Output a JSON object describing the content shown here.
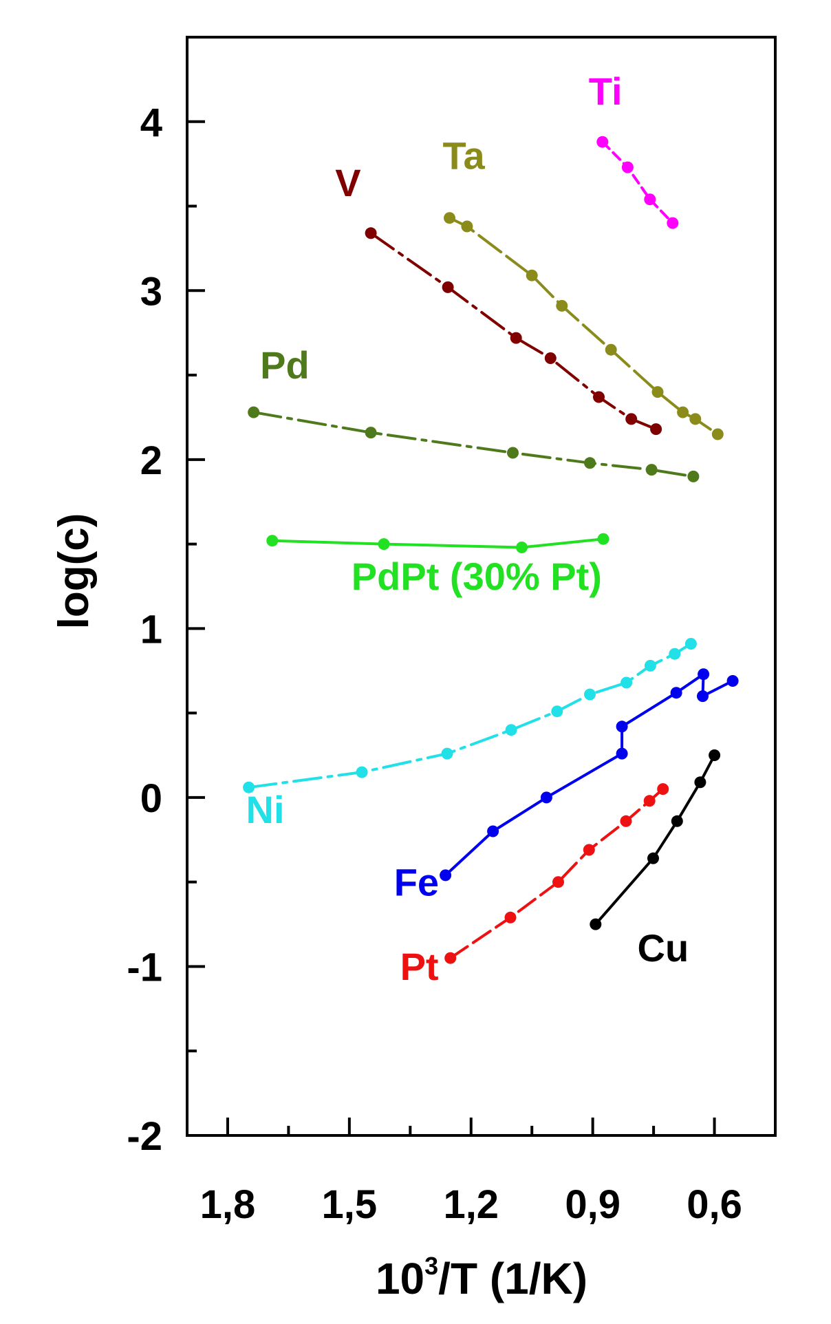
{
  "chart_data": {
    "type": "line",
    "title": "",
    "xlabel_base": "10",
    "xlabel_sup": "3",
    "xlabel_rest": "/T (1/K)",
    "ylabel": "log(c)",
    "xlim": [
      1.9,
      0.45
    ],
    "ylim": [
      -2,
      4.5
    ],
    "x_inverted": true,
    "grid": false,
    "x_ticks": [
      {
        "value": 1.8,
        "label": "1,8"
      },
      {
        "value": 1.5,
        "label": "1,5"
      },
      {
        "value": 1.2,
        "label": "1,2"
      },
      {
        "value": 0.9,
        "label": "0,9"
      },
      {
        "value": 0.6,
        "label": "0,6"
      }
    ],
    "x_minor_ticks": [
      1.65,
      1.35,
      1.05,
      0.75
    ],
    "y_ticks": [
      {
        "value": 4,
        "label": "4"
      },
      {
        "value": 3,
        "label": "3"
      },
      {
        "value": 2,
        "label": "2"
      },
      {
        "value": 1,
        "label": "1"
      },
      {
        "value": 0,
        "label": "0"
      },
      {
        "value": -1,
        "label": "-1"
      },
      {
        "value": -2,
        "label": "-2"
      }
    ],
    "y_minor_ticks": [
      3.5,
      2.5,
      1.5,
      0.5,
      -0.5,
      -1.5
    ],
    "series": [
      {
        "name": "Ti",
        "color": "#ff00ff",
        "dash": "14,8",
        "x": [
          0.876,
          0.814,
          0.759,
          0.703
        ],
        "y": [
          3.88,
          3.73,
          3.54,
          3.4
        ],
        "label": {
          "x": 0.91,
          "y": 4.1
        }
      },
      {
        "name": "Ta",
        "color": "#8b8b1c",
        "dash": "40,10",
        "x": [
          1.253,
          1.21,
          1.05,
          0.976,
          0.855,
          0.74,
          0.678,
          0.647,
          0.592
        ],
        "y": [
          3.43,
          3.38,
          3.09,
          2.91,
          2.65,
          2.4,
          2.28,
          2.24,
          2.15
        ],
        "label": {
          "x": 1.27,
          "y": 3.72
        }
      },
      {
        "name": "V",
        "color": "#800000",
        "dash": "40,10,6,10",
        "x": [
          1.447,
          1.257,
          1.089,
          1.004,
          0.885,
          0.805,
          0.744
        ],
        "y": [
          3.34,
          3.02,
          2.72,
          2.6,
          2.37,
          2.24,
          2.18
        ],
        "label": {
          "x": 1.535,
          "y": 3.56
        }
      },
      {
        "name": "Pd",
        "color": "#4e7a1c",
        "dash": "40,10,6,10",
        "x": [
          1.736,
          1.447,
          1.097,
          0.907,
          0.755,
          0.652
        ],
        "y": [
          2.28,
          2.16,
          2.04,
          1.98,
          1.94,
          1.9
        ],
        "label": {
          "x": 1.72,
          "y": 2.48
        }
      },
      {
        "name": "PdPt (30% Pt)",
        "color": "#22e022",
        "dash": "",
        "x": [
          1.69,
          1.415,
          1.075,
          0.874
        ],
        "y": [
          1.52,
          1.5,
          1.48,
          1.53
        ],
        "label": {
          "x": 1.495,
          "y": 1.23
        }
      },
      {
        "name": "Ni",
        "color": "#22e0e8",
        "dash": "40,10,6,10",
        "x": [
          1.748,
          1.469,
          1.259,
          1.101,
          0.988,
          0.907,
          0.817,
          0.758,
          0.698,
          0.658
        ],
        "y": [
          0.06,
          0.15,
          0.26,
          0.4,
          0.51,
          0.61,
          0.68,
          0.78,
          0.85,
          0.91
        ],
        "label": {
          "x": 1.755,
          "y": -0.15
        }
      },
      {
        "name": "Fe",
        "color": "#0000ee",
        "dash": "",
        "x": [
          1.263,
          1.146,
          1.014,
          0.828,
          0.828,
          0.694,
          0.627,
          0.629,
          0.555
        ],
        "y": [
          -0.46,
          -0.2,
          0.0,
          0.26,
          0.42,
          0.62,
          0.73,
          0.6,
          0.69
        ],
        "label": {
          "x": 1.39,
          "y": -0.58
        }
      },
      {
        "name": "Pt",
        "color": "#ee1111",
        "dash": "30,10",
        "x": [
          1.251,
          1.103,
          0.985,
          0.909,
          0.818,
          0.76,
          0.727
        ],
        "y": [
          -0.95,
          -0.71,
          -0.5,
          -0.31,
          -0.14,
          -0.02,
          0.05
        ],
        "label": {
          "x": 1.375,
          "y": -1.08
        }
      },
      {
        "name": "Cu",
        "color": "#000000",
        "dash": "",
        "x": [
          0.893,
          0.751,
          0.692,
          0.635,
          0.6
        ],
        "y": [
          -0.75,
          -0.36,
          -0.14,
          0.09,
          0.25
        ],
        "label": {
          "x": 0.79,
          "y": -0.97
        }
      }
    ]
  }
}
